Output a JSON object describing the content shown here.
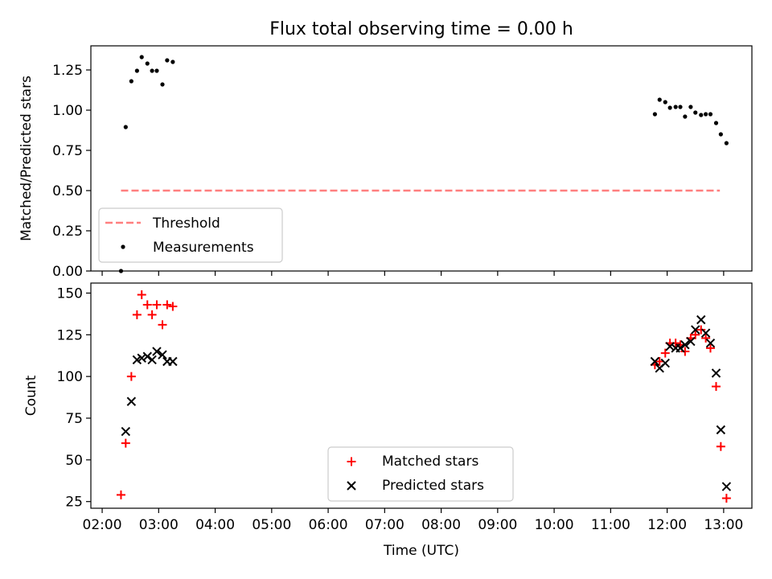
{
  "figure": {
    "title": "Flux total observing time = 0.00 h",
    "xlabel": "Time (UTC)"
  },
  "chart_data": [
    {
      "type": "scatter",
      "ylabel": "Matched/Predicted stars",
      "ylim": [
        0,
        1.4
      ],
      "yticks": [
        0.0,
        0.25,
        0.5,
        0.75,
        1.0,
        1.25
      ],
      "ytick_labels": [
        "0.00",
        "0.25",
        "0.50",
        "0.75",
        "1.00",
        "1.25"
      ],
      "xlim": [
        "01:48",
        "13:30"
      ],
      "xticks": [
        "02:00",
        "03:00",
        "04:00",
        "05:00",
        "06:00",
        "07:00",
        "08:00",
        "09:00",
        "10:00",
        "11:00",
        "12:00",
        "13:00"
      ],
      "show_tick_labels_x": false,
      "legend": {
        "position": "lower-left",
        "entries": [
          "Threshold",
          "Measurements"
        ]
      },
      "series": [
        {
          "name": "Threshold",
          "kind": "dashed-line",
          "color": "#ff7f7f",
          "points": [
            [
              "02:20",
              0.5
            ],
            [
              "12:56",
              0.5
            ]
          ]
        },
        {
          "name": "Measurements",
          "kind": "dot",
          "color": "#000000",
          "points": [
            [
              "02:20",
              0.0
            ],
            [
              "02:25",
              0.895
            ],
            [
              "02:31",
              1.18
            ],
            [
              "02:37",
              1.245
            ],
            [
              "02:42",
              1.33
            ],
            [
              "02:48",
              1.29
            ],
            [
              "02:53",
              1.245
            ],
            [
              "02:58",
              1.245
            ],
            [
              "03:04",
              1.16
            ],
            [
              "03:09",
              1.31
            ],
            [
              "03:15",
              1.3
            ],
            [
              "11:47",
              0.975
            ],
            [
              "11:52",
              1.065
            ],
            [
              "11:58",
              1.05
            ],
            [
              "12:03",
              1.015
            ],
            [
              "12:09",
              1.02
            ],
            [
              "12:14",
              1.02
            ],
            [
              "12:19",
              0.96
            ],
            [
              "12:25",
              1.02
            ],
            [
              "12:30",
              0.985
            ],
            [
              "12:36",
              0.97
            ],
            [
              "12:41",
              0.975
            ],
            [
              "12:46",
              0.975
            ],
            [
              "12:52",
              0.92
            ],
            [
              "12:57",
              0.85
            ],
            [
              "13:03",
              0.795
            ]
          ]
        }
      ]
    },
    {
      "type": "scatter",
      "ylabel": "Count",
      "ylim": [
        21,
        156
      ],
      "yticks": [
        25,
        50,
        75,
        100,
        125,
        150
      ],
      "ytick_labels": [
        "25",
        "50",
        "75",
        "100",
        "125",
        "150"
      ],
      "xlim": [
        "01:48",
        "13:30"
      ],
      "xticks": [
        "02:00",
        "03:00",
        "04:00",
        "05:00",
        "06:00",
        "07:00",
        "08:00",
        "09:00",
        "10:00",
        "11:00",
        "12:00",
        "13:00"
      ],
      "xtick_labels": [
        "02:00",
        "03:00",
        "04:00",
        "05:00",
        "06:00",
        "07:00",
        "08:00",
        "09:00",
        "10:00",
        "11:00",
        "12:00",
        "13:00"
      ],
      "legend": {
        "position": "lower-center",
        "entries": [
          "Matched stars",
          "Predicted stars"
        ]
      },
      "series": [
        {
          "name": "Matched stars",
          "kind": "plus",
          "color": "#ff0000",
          "points": [
            [
              "02:20",
              29
            ],
            [
              "02:25",
              60
            ],
            [
              "02:31",
              100
            ],
            [
              "02:37",
              137
            ],
            [
              "02:42",
              149
            ],
            [
              "02:48",
              143
            ],
            [
              "02:53",
              137
            ],
            [
              "02:58",
              143
            ],
            [
              "03:04",
              131
            ],
            [
              "03:09",
              143
            ],
            [
              "03:15",
              142
            ],
            [
              "11:47",
              107
            ],
            [
              "11:52",
              109
            ],
            [
              "11:58",
              114
            ],
            [
              "12:03",
              120
            ],
            [
              "12:09",
              120
            ],
            [
              "12:14",
              119
            ],
            [
              "12:19",
              115
            ],
            [
              "12:25",
              123
            ],
            [
              "12:30",
              125
            ],
            [
              "12:36",
              128
            ],
            [
              "12:41",
              123
            ],
            [
              "12:46",
              117
            ],
            [
              "12:52",
              94
            ],
            [
              "12:57",
              58
            ],
            [
              "13:03",
              27
            ]
          ]
        },
        {
          "name": "Predicted stars",
          "kind": "x",
          "color": "#000000",
          "points": [
            [
              "02:25",
              67
            ],
            [
              "02:31",
              85
            ],
            [
              "02:37",
              110
            ],
            [
              "02:42",
              111
            ],
            [
              "02:48",
              112
            ],
            [
              "02:53",
              110
            ],
            [
              "02:58",
              115
            ],
            [
              "03:04",
              113
            ],
            [
              "03:09",
              109
            ],
            [
              "03:15",
              109
            ],
            [
              "11:47",
              109
            ],
            [
              "11:52",
              105
            ],
            [
              "11:58",
              108
            ],
            [
              "12:03",
              118
            ],
            [
              "12:09",
              117
            ],
            [
              "12:14",
              117
            ],
            [
              "12:19",
              119
            ],
            [
              "12:25",
              121
            ],
            [
              "12:30",
              128
            ],
            [
              "12:36",
              134
            ],
            [
              "12:41",
              126
            ],
            [
              "12:46",
              120
            ],
            [
              "12:52",
              102
            ],
            [
              "12:57",
              68
            ],
            [
              "13:03",
              34
            ]
          ]
        }
      ]
    }
  ]
}
